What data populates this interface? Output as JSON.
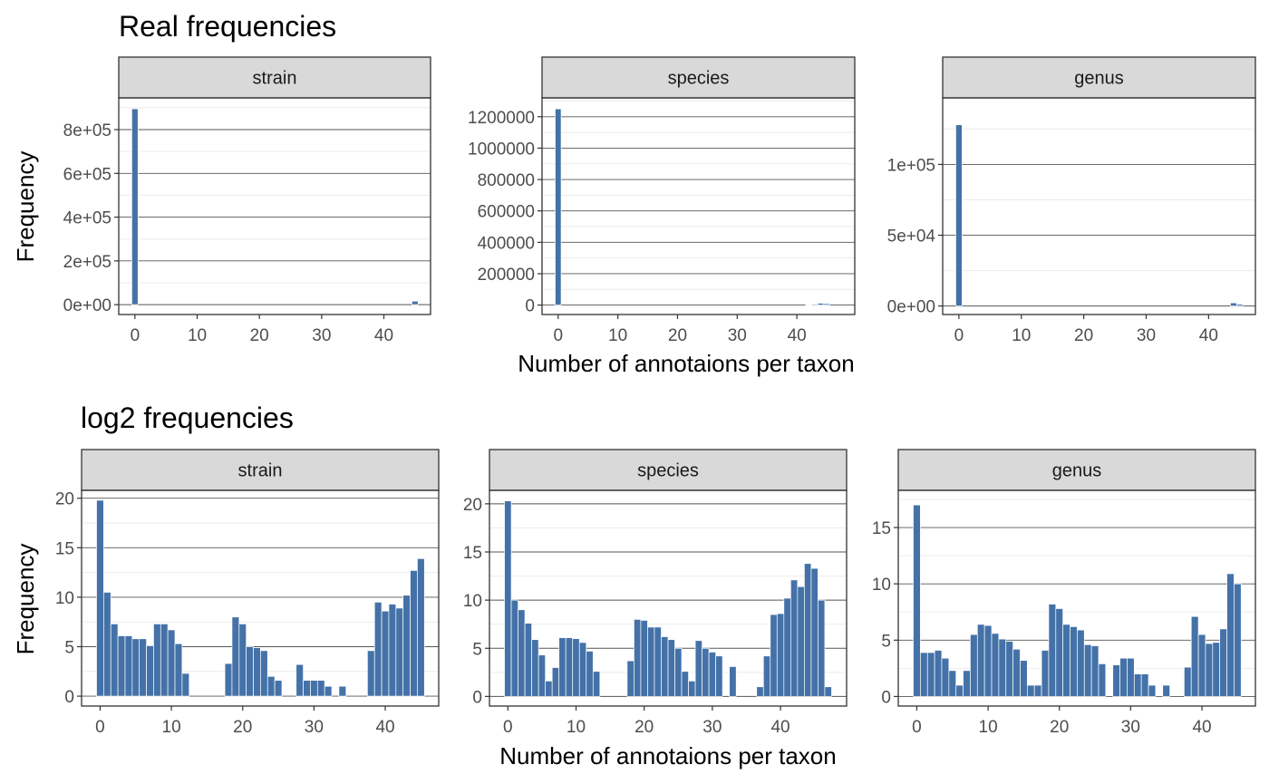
{
  "chart_data": [
    {
      "type": "bar",
      "title": "Real frequencies",
      "xlabel": "Number of annotaions per taxon",
      "ylabel": "Frequency",
      "grid": true,
      "legend": "none",
      "bar_color": "#4472a8",
      "facets": [
        {
          "name": "strain",
          "xlim": [
            -2.6,
            47.5
          ],
          "ylim": [
            -45000,
            945000
          ],
          "xticks": [
            0,
            10,
            20,
            30,
            40
          ],
          "xtick_labels": [
            "0",
            "10",
            "20",
            "30",
            "40"
          ],
          "yticks": [
            0,
            200000,
            400000,
            600000,
            800000
          ],
          "ytick_labels": [
            "0e+00",
            "2e+05",
            "4e+05",
            "6e+05",
            "8e+05"
          ],
          "bins": [
            [
              0,
              895000
            ],
            [
              45,
              16000
            ]
          ]
        },
        {
          "name": "species",
          "xlim": [
            -2.7,
            49.7
          ],
          "ylim": [
            -60000,
            1320000
          ],
          "xticks": [
            0,
            10,
            20,
            30,
            40
          ],
          "xtick_labels": [
            "0",
            "10",
            "20",
            "30",
            "40"
          ],
          "yticks": [
            0,
            200000,
            400000,
            600000,
            800000,
            1000000,
            1200000
          ],
          "ytick_labels": [
            "0",
            "200000",
            "400000",
            "600000",
            "800000",
            "1000000",
            "1200000"
          ],
          "bins": [
            [
              0,
              1250000
            ],
            [
              42,
              3000
            ],
            [
              43,
              6000
            ],
            [
              44,
              12000
            ],
            [
              45,
              9000
            ]
          ]
        },
        {
          "name": "genus",
          "xlim": [
            -2.6,
            47.5
          ],
          "ylim": [
            -6000,
            147000
          ],
          "xticks": [
            0,
            10,
            20,
            30,
            40
          ],
          "xtick_labels": [
            "0",
            "10",
            "20",
            "30",
            "40"
          ],
          "yticks": [
            0,
            50000,
            100000
          ],
          "ytick_labels": [
            "0e+00",
            "5e+04",
            "1e+05"
          ],
          "bins": [
            [
              0,
              128000
            ],
            [
              44,
              2200
            ],
            [
              45,
              1200
            ]
          ]
        }
      ]
    },
    {
      "type": "bar",
      "title": "log2 frequencies",
      "xlabel": "Number of annotaions per taxon",
      "ylabel": "Frequency",
      "grid": true,
      "legend": "none",
      "bar_color": "#4472a8",
      "facets": [
        {
          "name": "strain",
          "xlim": [
            -2.6,
            47.5
          ],
          "ylim": [
            -1,
            20.8
          ],
          "xticks": [
            0,
            10,
            20,
            30,
            40
          ],
          "xtick_labels": [
            "0",
            "10",
            "20",
            "30",
            "40"
          ],
          "yticks": [
            0,
            5,
            10,
            15,
            20
          ],
          "ytick_labels": [
            "0",
            "5",
            "10",
            "15",
            "20"
          ],
          "bins": [
            [
              0,
              19.8
            ],
            [
              1,
              10.5
            ],
            [
              2,
              7.3
            ],
            [
              3,
              6.1
            ],
            [
              4,
              6.1
            ],
            [
              5,
              5.8
            ],
            [
              6,
              5.8
            ],
            [
              7,
              5.1
            ],
            [
              8,
              7.3
            ],
            [
              9,
              7.3
            ],
            [
              10,
              6.7
            ],
            [
              11,
              5.3
            ],
            [
              12,
              2.3
            ],
            [
              18,
              3.3
            ],
            [
              19,
              8
            ],
            [
              20,
              7.3
            ],
            [
              21,
              5
            ],
            [
              22,
              4.9
            ],
            [
              23,
              4.6
            ],
            [
              24,
              2
            ],
            [
              25,
              1.6
            ],
            [
              28,
              3.2
            ],
            [
              29,
              1.6
            ],
            [
              30,
              1.6
            ],
            [
              31,
              1.6
            ],
            [
              32,
              1
            ],
            [
              34,
              1
            ],
            [
              38,
              4.6
            ],
            [
              39,
              9.5
            ],
            [
              40,
              8.6
            ],
            [
              41,
              9.3
            ],
            [
              42,
              8.9
            ],
            [
              43,
              10.2
            ],
            [
              44,
              12.7
            ],
            [
              45,
              13.9
            ]
          ]
        },
        {
          "name": "species",
          "xlim": [
            -2.7,
            49.7
          ],
          "ylim": [
            -1,
            21.4
          ],
          "xticks": [
            0,
            10,
            20,
            30,
            40
          ],
          "xtick_labels": [
            "0",
            "10",
            "20",
            "30",
            "40"
          ],
          "yticks": [
            0,
            5,
            10,
            15,
            20
          ],
          "ytick_labels": [
            "0",
            "5",
            "10",
            "15",
            "20"
          ],
          "bins": [
            [
              0,
              20.3
            ],
            [
              1,
              10
            ],
            [
              2,
              9
            ],
            [
              3,
              7.6
            ],
            [
              4,
              5.9
            ],
            [
              5,
              4.3
            ],
            [
              6,
              1.6
            ],
            [
              7,
              3
            ],
            [
              8,
              6.1
            ],
            [
              9,
              6.1
            ],
            [
              10,
              6
            ],
            [
              11,
              5.6
            ],
            [
              12,
              4.7
            ],
            [
              13,
              2.6
            ],
            [
              18,
              3.7
            ],
            [
              19,
              8
            ],
            [
              20,
              7.9
            ],
            [
              21,
              7.2
            ],
            [
              22,
              7.2
            ],
            [
              23,
              6.2
            ],
            [
              24,
              5.9
            ],
            [
              25,
              5
            ],
            [
              26,
              2.6
            ],
            [
              27,
              1.6
            ],
            [
              28,
              5.8
            ],
            [
              29,
              5
            ],
            [
              30,
              4.6
            ],
            [
              31,
              4.2
            ],
            [
              33,
              3.1
            ],
            [
              37,
              1
            ],
            [
              38,
              4.2
            ],
            [
              39,
              8.5
            ],
            [
              40,
              8.6
            ],
            [
              41,
              10.2
            ],
            [
              42,
              12.1
            ],
            [
              43,
              11.4
            ],
            [
              44,
              13.8
            ],
            [
              45,
              13.3
            ],
            [
              46,
              10
            ],
            [
              47,
              1
            ]
          ]
        },
        {
          "name": "genus",
          "xlim": [
            -2.6,
            47.5
          ],
          "ylim": [
            -0.85,
            18.3
          ],
          "xticks": [
            0,
            10,
            20,
            30,
            40
          ],
          "xtick_labels": [
            "0",
            "10",
            "20",
            "30",
            "40"
          ],
          "yticks": [
            0,
            5,
            10,
            15
          ],
          "ytick_labels": [
            "0",
            "5",
            "10",
            "15"
          ],
          "bins": [
            [
              0,
              17
            ],
            [
              1,
              3.9
            ],
            [
              2,
              3.9
            ],
            [
              3,
              4.1
            ],
            [
              4,
              3.4
            ],
            [
              5,
              2.3
            ],
            [
              6,
              1
            ],
            [
              7,
              2.3
            ],
            [
              8,
              5.5
            ],
            [
              9,
              6.4
            ],
            [
              10,
              6.3
            ],
            [
              11,
              5.6
            ],
            [
              12,
              5.1
            ],
            [
              13,
              4.9
            ],
            [
              14,
              4.2
            ],
            [
              15,
              3.2
            ],
            [
              16,
              1
            ],
            [
              17,
              1
            ],
            [
              18,
              4.1
            ],
            [
              19,
              8.2
            ],
            [
              20,
              7.8
            ],
            [
              21,
              6.4
            ],
            [
              22,
              6.2
            ],
            [
              23,
              5.9
            ],
            [
              24,
              4.6
            ],
            [
              25,
              4.5
            ],
            [
              26,
              2.9
            ],
            [
              28,
              2.8
            ],
            [
              29,
              3.4
            ],
            [
              30,
              3.4
            ],
            [
              31,
              2
            ],
            [
              32,
              2
            ],
            [
              33,
              1
            ],
            [
              35,
              1
            ],
            [
              38,
              2.6
            ],
            [
              39,
              7.1
            ],
            [
              40,
              5.5
            ],
            [
              41,
              4.7
            ],
            [
              42,
              4.8
            ],
            [
              43,
              6
            ],
            [
              44,
              10.9
            ],
            [
              45,
              10
            ]
          ]
        }
      ]
    }
  ]
}
